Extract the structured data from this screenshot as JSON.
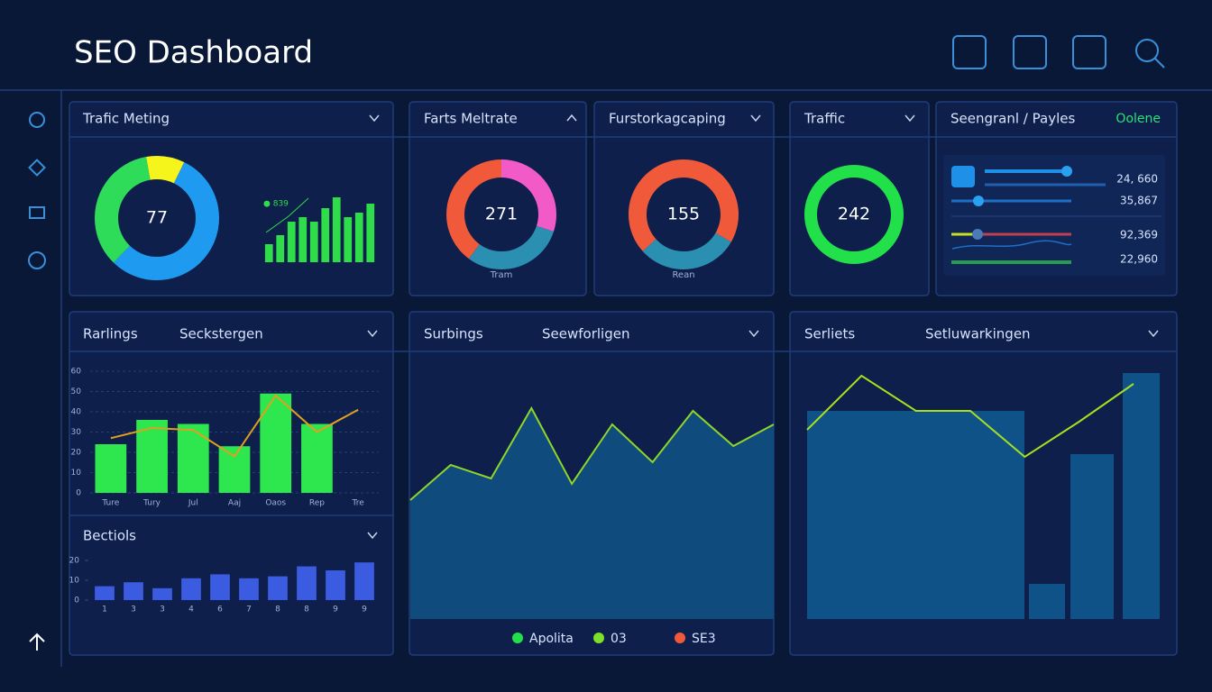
{
  "header": {
    "title": "SEO Dashboard"
  },
  "panel_traffic_meting": {
    "title": "Trafic Meting",
    "donut": {
      "type": "pie",
      "center": 77,
      "values": [
        10,
        55,
        35
      ],
      "colors": [
        "#f5f51c",
        "#1e9bf0",
        "#2fdc5a"
      ]
    },
    "bars": {
      "type": "bar",
      "label": "● 839",
      "values": [
        20,
        30,
        45,
        50,
        45,
        60,
        72,
        50,
        55,
        65
      ],
      "ylim": [
        0,
        80
      ],
      "color": "#2fdc4a"
    }
  },
  "panel_rates": {
    "title": "Farts Meltrate",
    "donut": {
      "type": "pie",
      "center": 271,
      "caption": "Tram",
      "values": [
        30,
        30,
        40
      ],
      "colors": [
        "#f25ac8",
        "#2a8fb0",
        "#f05a3a"
      ]
    }
  },
  "panel_forecast": {
    "title": "Furstorkagcaping",
    "donut": {
      "type": "pie",
      "center": 155,
      "caption": "Rean",
      "values": [
        30,
        70
      ],
      "colors": [
        "#2a8fb0",
        "#f05a3a"
      ]
    }
  },
  "panel_traffic": {
    "title": "Traffic",
    "donut": {
      "type": "pie",
      "center": 242,
      "values": [
        100
      ],
      "colors": [
        "#22e04a"
      ]
    }
  },
  "panel_sliders": {
    "title": "Seengranl / Payles",
    "link": "Oolene",
    "rows": [
      "24, 660",
      "35,867",
      "92,369",
      "22,960"
    ]
  },
  "panel_rankings": {
    "title": "Rarlings",
    "subtitle": "Seckstergen",
    "chart": {
      "type": "bar-line",
      "categories": [
        "Ture",
        "Tury",
        "Jul",
        "Aaj",
        "Oaos",
        "Rep",
        "Tre"
      ],
      "bar_values": [
        24,
        36,
        34,
        23,
        49,
        34,
        null
      ],
      "bar_color": "#2ee64e",
      "line_values": [
        27,
        32,
        31,
        18,
        48,
        30,
        41
      ],
      "line_color": "#e0a020",
      "ylim": [
        0,
        60
      ],
      "yticks": [
        0,
        10,
        20,
        30,
        40,
        50,
        60
      ],
      "grid": true
    }
  },
  "panel_sections": {
    "title": "Bectiols",
    "chart": {
      "type": "bar",
      "categories": [
        "1",
        "3",
        "3",
        "4",
        "6",
        "7",
        "8",
        "8",
        "9",
        "9"
      ],
      "values": [
        7,
        9,
        6,
        11,
        13,
        11,
        12,
        17,
        15,
        19
      ],
      "color": "#3b5ce0",
      "ylim": [
        0,
        20
      ],
      "yticks": [
        0,
        10,
        20
      ]
    }
  },
  "panel_surbings": {
    "title": "Surbings",
    "subtitle": "Seewforligen",
    "chart": {
      "type": "area",
      "values": [
        44,
        57,
        52,
        78,
        50,
        72,
        58,
        77,
        64,
        72
      ],
      "ylim": [
        0,
        100
      ],
      "color": "#0f4b7c",
      "line_color": "#8fd62a"
    },
    "legend": [
      {
        "name": "Apolita",
        "color": "#22e04a"
      },
      {
        "name": "03",
        "color": "#7ee02a"
      },
      {
        "name": "SE3",
        "color": "#f05a3a"
      }
    ]
  },
  "panel_serliets": {
    "title": "Serliets",
    "subtitle": "Setluwarkingen",
    "chart": {
      "type": "bar-line",
      "bar_values": [
        77,
        13,
        61,
        91
      ],
      "bar_color": "#0f5288",
      "line_values": [
        70,
        90,
        77,
        77,
        60,
        73,
        87
      ],
      "line_color": "#a8e020",
      "ylim": [
        0,
        100
      ]
    }
  }
}
